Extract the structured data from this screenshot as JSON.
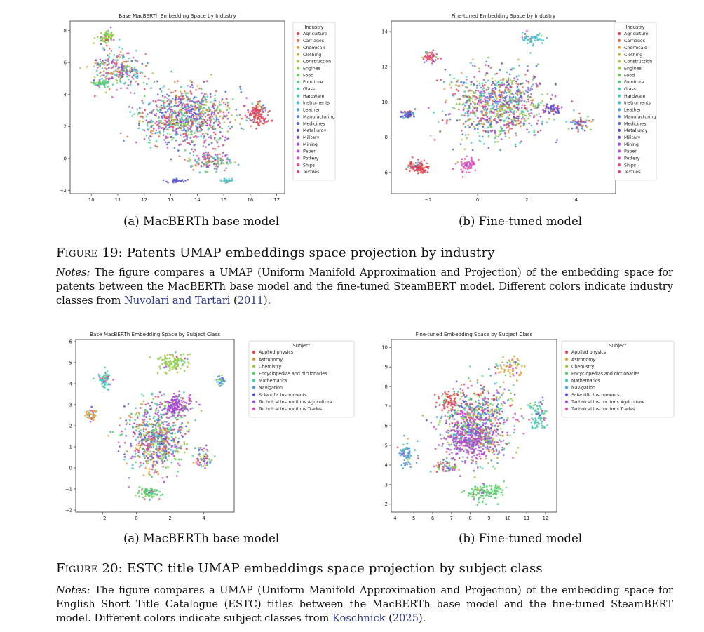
{
  "figure19": {
    "label": "Figure 19:",
    "title": "Patents UMAP embeddings space projection by industry",
    "notes_label": "Notes:",
    "notes_text_1": "The figure compares a UMAP (Uniform Manifold Approximation and Projection) of the embedding space for patents between the MacBERTh base model and the fine-tuned SteamBERT model. Different colors indicate industry classes from",
    "citation_author": "Nuvolari and Tartari",
    "citation_year": "2011",
    "subcaption_a": "(a) MacBERTh base model",
    "subcaption_b": "(b) Fine-tuned model"
  },
  "figure20": {
    "label": "Figure 20:",
    "title": "ESTC title UMAP embeddings space projection by subject class",
    "notes_label": "Notes:",
    "notes_text_1": "The figure compares a UMAP (Uniform Manifold Approximation and Projection) of the embedding space for English Short Title Catalogue (ESTC) titles between the MacBERTh base model and the fine-tuned SteamBERT model. Different colors indicate subject classes from",
    "citation_author": "Koschnick",
    "citation_year": "2025",
    "subcaption_a": "(a) MacBERTh base model",
    "subcaption_b": "(b) Fine-tuned model"
  },
  "chart_data": [
    {
      "id": "f19a",
      "type": "scatter",
      "title": "Base MacBERTh Embedding Space by Industry",
      "legend_title": "Industry",
      "legend_position": "right-outside",
      "xlim": [
        9.2,
        17.3
      ],
      "ylim": [
        -2.2,
        8.6
      ],
      "xticks": [
        10,
        11,
        12,
        13,
        14,
        15,
        16,
        17
      ],
      "yticks": [
        -2,
        0,
        2,
        4,
        6,
        8
      ],
      "categories": [
        "Agriculture",
        "Carriages",
        "Chemicals",
        "Clothing",
        "Construction",
        "Engines",
        "Food",
        "Furniture",
        "Glass",
        "Hardware",
        "Instruments",
        "Leather",
        "Manufacturing",
        "Medicines",
        "Metallurgy",
        "Military",
        "Mining",
        "Paper",
        "Pottery",
        "Ships",
        "Textiles"
      ],
      "colors": [
        "#e0474c",
        "#d9714e",
        "#e8a13a",
        "#c9b84a",
        "#b0c94a",
        "#8fcd45",
        "#6cd154",
        "#4fd17a",
        "#48cfa0",
        "#47cbbe",
        "#4bbfd3",
        "#4aa6db",
        "#4a88de",
        "#4a6adb",
        "#5553d6",
        "#7247d8",
        "#9a47da",
        "#c149d8",
        "#dd4cc5",
        "#e44b9c",
        "#e34a73"
      ],
      "clusters": [
        {
          "x": 13.6,
          "y": 2.6,
          "sx": 1.6,
          "sy": 1.6,
          "n": 900,
          "cat": -1
        },
        {
          "x": 11.0,
          "y": 5.6,
          "sx": 0.9,
          "sy": 1.0,
          "n": 260,
          "cat": -1
        },
        {
          "x": 16.3,
          "y": 2.8,
          "sx": 0.35,
          "sy": 0.6,
          "n": 130,
          "cat": 0
        },
        {
          "x": 10.6,
          "y": 7.6,
          "sx": 0.35,
          "sy": 0.4,
          "n": 60,
          "cat": 5
        },
        {
          "x": 13.2,
          "y": -1.4,
          "sx": 0.35,
          "sy": 0.15,
          "n": 30,
          "cat": 14
        },
        {
          "x": 15.1,
          "y": -1.4,
          "sx": 0.25,
          "sy": 0.12,
          "n": 22,
          "cat": 10
        },
        {
          "x": 14.5,
          "y": -0.2,
          "sx": 0.8,
          "sy": 0.5,
          "n": 140,
          "cat": -1
        },
        {
          "x": 10.4,
          "y": 4.7,
          "sx": 0.4,
          "sy": 0.2,
          "n": 40,
          "cat": 7
        }
      ]
    },
    {
      "id": "f19b",
      "type": "scatter",
      "title": "Fine-tuned Embedding Space by Industry",
      "legend_title": "Industry",
      "legend_position": "right-outside",
      "xlim": [
        -3.5,
        5.6
      ],
      "ylim": [
        4.8,
        14.6
      ],
      "xticks": [
        -2,
        0,
        2,
        4
      ],
      "yticks": [
        6,
        8,
        10,
        12,
        14
      ],
      "categories": [
        "Agriculture",
        "Carriages",
        "Chemicals",
        "Clothing",
        "Construction",
        "Engines",
        "Food",
        "Furniture",
        "Glass",
        "Hardware",
        "Instruments",
        "Leather",
        "Manufacturing",
        "Medicines",
        "Metallurgy",
        "Military",
        "Mining",
        "Paper",
        "Pottery",
        "Ships",
        "Textiles"
      ],
      "colors": [
        "#e0474c",
        "#d9714e",
        "#e8a13a",
        "#c9b84a",
        "#b0c94a",
        "#8fcd45",
        "#6cd154",
        "#4fd17a",
        "#48cfa0",
        "#47cbbe",
        "#4bbfd3",
        "#4aa6db",
        "#4a88de",
        "#4a6adb",
        "#5553d6",
        "#7247d8",
        "#9a47da",
        "#c149d8",
        "#dd4cc5",
        "#e44b9c",
        "#e34a73"
      ],
      "clusters": [
        {
          "x": 0.8,
          "y": 9.8,
          "sx": 1.7,
          "sy": 1.8,
          "n": 900,
          "cat": -1
        },
        {
          "x": -2.4,
          "y": 6.3,
          "sx": 0.35,
          "sy": 0.3,
          "n": 110,
          "cat": 0
        },
        {
          "x": -2.8,
          "y": 9.3,
          "sx": 0.25,
          "sy": 0.18,
          "n": 50,
          "cat": 14
        },
        {
          "x": -1.9,
          "y": 12.6,
          "sx": 0.3,
          "sy": 0.3,
          "n": 50,
          "cat": 20
        },
        {
          "x": -0.4,
          "y": 6.4,
          "sx": 0.4,
          "sy": 0.4,
          "n": 60,
          "cat": 18
        },
        {
          "x": 3.0,
          "y": 9.6,
          "sx": 0.3,
          "sy": 0.25,
          "n": 55,
          "cat": 15
        },
        {
          "x": 4.2,
          "y": 8.8,
          "sx": 0.4,
          "sy": 0.4,
          "n": 60,
          "cat": -1
        },
        {
          "x": 2.2,
          "y": 13.6,
          "sx": 0.5,
          "sy": 0.3,
          "n": 50,
          "cat": 10
        }
      ]
    },
    {
      "id": "f20a",
      "type": "scatter",
      "title": "Base MacBERTh Embedding Space by Subject Class",
      "legend_title": "Subject",
      "legend_position": "right-outside",
      "xlim": [
        -3.6,
        5.8
      ],
      "ylim": [
        -2.1,
        6.1
      ],
      "xticks": [
        -2,
        0,
        2,
        4
      ],
      "yticks": [
        -2,
        -1,
        0,
        1,
        2,
        3,
        4,
        5,
        6
      ],
      "categories": [
        "Applied physics",
        "Astronomy",
        "Chemistry",
        "Encyclopedias and dictionaries",
        "Mathematics",
        "Navigation",
        "Scientific instruments",
        "Technical instructions Agriculture",
        "Technical instructions Trades"
      ],
      "colors": [
        "#e0474c",
        "#dda13c",
        "#99cf45",
        "#57d16a",
        "#48cdb0",
        "#4a9fdc",
        "#5853d8",
        "#aa4bdb",
        "#df4bb8"
      ],
      "clusters": [
        {
          "x": 1.2,
          "y": 1.4,
          "sx": 1.6,
          "sy": 1.4,
          "n": 700,
          "cat": -1
        },
        {
          "x": 2.4,
          "y": 3.0,
          "sx": 0.9,
          "sy": 0.5,
          "n": 180,
          "cat": 7
        },
        {
          "x": 2.2,
          "y": 5.0,
          "sx": 1.0,
          "sy": 0.4,
          "n": 110,
          "cat": 2
        },
        {
          "x": -1.9,
          "y": 4.2,
          "sx": 0.35,
          "sy": 0.4,
          "n": 60,
          "cat": 4
        },
        {
          "x": -2.7,
          "y": 2.5,
          "sx": 0.3,
          "sy": 0.25,
          "n": 40,
          "cat": 1
        },
        {
          "x": 5.0,
          "y": 4.1,
          "sx": 0.2,
          "sy": 0.3,
          "n": 35,
          "cat": 5
        },
        {
          "x": 0.7,
          "y": -1.2,
          "sx": 0.6,
          "sy": 0.25,
          "n": 70,
          "cat": 3
        },
        {
          "x": 4.0,
          "y": 0.5,
          "sx": 0.5,
          "sy": 0.5,
          "n": 60,
          "cat": -1
        }
      ]
    },
    {
      "id": "f20b",
      "type": "scatter",
      "title": "Fine-tuned Embedding Space by Subject Class",
      "legend_title": "Subject",
      "legend_position": "right-outside",
      "xlim": [
        3.8,
        12.6
      ],
      "ylim": [
        1.6,
        10.4
      ],
      "xticks": [
        4,
        5,
        6,
        7,
        8,
        9,
        10,
        11,
        12
      ],
      "yticks": [
        2,
        3,
        4,
        5,
        6,
        7,
        8,
        9,
        10
      ],
      "categories": [
        "Applied physics",
        "Astronomy",
        "Chemistry",
        "Encyclopedias and dictionaries",
        "Mathematics",
        "Navigation",
        "Scientific instruments",
        "Technical instructions Agriculture",
        "Technical instructions Trades"
      ],
      "colors": [
        "#e0474c",
        "#dda13c",
        "#99cf45",
        "#57d16a",
        "#48cdb0",
        "#4a9fdc",
        "#5853d8",
        "#aa4bdb",
        "#df4bb8"
      ],
      "clusters": [
        {
          "x": 8.4,
          "y": 6.2,
          "sx": 1.6,
          "sy": 1.7,
          "n": 800,
          "cat": -1
        },
        {
          "x": 8.0,
          "y": 5.2,
          "sx": 1.2,
          "sy": 0.9,
          "n": 260,
          "cat": 7
        },
        {
          "x": 8.8,
          "y": 2.6,
          "sx": 0.9,
          "sy": 0.4,
          "n": 120,
          "cat": 3
        },
        {
          "x": 4.6,
          "y": 4.5,
          "sx": 0.35,
          "sy": 0.5,
          "n": 70,
          "cat": 5
        },
        {
          "x": 11.6,
          "y": 6.5,
          "sx": 0.4,
          "sy": 0.7,
          "n": 80,
          "cat": 4
        },
        {
          "x": 6.9,
          "y": 7.3,
          "sx": 0.5,
          "sy": 0.5,
          "n": 70,
          "cat": 0
        },
        {
          "x": 6.7,
          "y": 3.9,
          "sx": 0.6,
          "sy": 0.4,
          "n": 70,
          "cat": -1
        },
        {
          "x": 10.2,
          "y": 9.0,
          "sx": 0.7,
          "sy": 0.5,
          "n": 60,
          "cat": 1
        }
      ]
    }
  ]
}
